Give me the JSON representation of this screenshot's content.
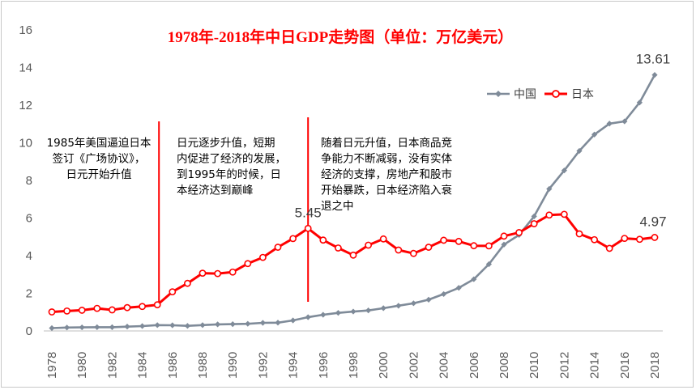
{
  "chart_data": {
    "type": "line",
    "title": "1978年-2018年中日GDP走势图（单位：万亿美元）",
    "xlabel": "",
    "ylabel": "",
    "x": [
      1978,
      1979,
      1980,
      1981,
      1982,
      1983,
      1984,
      1985,
      1986,
      1987,
      1988,
      1989,
      1990,
      1991,
      1992,
      1993,
      1994,
      1995,
      1996,
      1997,
      1998,
      1999,
      2000,
      2001,
      2002,
      2003,
      2004,
      2005,
      2006,
      2007,
      2008,
      2009,
      2010,
      2011,
      2012,
      2013,
      2014,
      2015,
      2016,
      2017,
      2018
    ],
    "x_ticks": [
      "1978",
      "1980",
      "1982",
      "1984",
      "1986",
      "1988",
      "1990",
      "1992",
      "1994",
      "1996",
      "1998",
      "2000",
      "2002",
      "2004",
      "2006",
      "2008",
      "2010",
      "2012",
      "2014",
      "2016",
      "2018"
    ],
    "y_ticks": [
      "0",
      "2",
      "4",
      "6",
      "8",
      "10",
      "12",
      "14",
      "16"
    ],
    "ylim": [
      0,
      16
    ],
    "grid": false,
    "legend_position": "top-right",
    "series": [
      {
        "name": "中国",
        "color": "#7f8b99",
        "marker": "diamond",
        "values": [
          0.15,
          0.18,
          0.19,
          0.2,
          0.2,
          0.23,
          0.26,
          0.31,
          0.3,
          0.27,
          0.31,
          0.35,
          0.36,
          0.38,
          0.43,
          0.44,
          0.56,
          0.73,
          0.86,
          0.96,
          1.03,
          1.09,
          1.21,
          1.34,
          1.47,
          1.66,
          1.96,
          2.29,
          2.75,
          3.55,
          4.59,
          5.1,
          6.09,
          7.55,
          8.53,
          9.57,
          10.44,
          11.02,
          11.14,
          12.14,
          13.61
        ]
      },
      {
        "name": "日本",
        "color": "#ff0000",
        "marker": "circle",
        "values": [
          1.01,
          1.06,
          1.1,
          1.2,
          1.12,
          1.24,
          1.3,
          1.39,
          2.08,
          2.53,
          3.07,
          3.05,
          3.13,
          3.58,
          3.91,
          4.45,
          4.91,
          5.45,
          4.83,
          4.41,
          4.03,
          4.56,
          4.89,
          4.3,
          4.12,
          4.45,
          4.82,
          4.76,
          4.53,
          4.52,
          5.04,
          5.23,
          5.7,
          6.16,
          6.2,
          5.16,
          4.85,
          4.39,
          4.92,
          4.87,
          4.97
        ]
      }
    ],
    "data_labels": [
      {
        "series": "中国",
        "year": 2018,
        "text": "13.61"
      },
      {
        "series": "日本",
        "year": 1995,
        "text": "5.45"
      },
      {
        "series": "日本",
        "year": 2018,
        "text": "4.97"
      }
    ],
    "annotations": [
      {
        "year": 1985,
        "color": "#ff0000",
        "lines": [
          "1985年美国逼迫日本",
          "签订《广场协议》，",
          "日元开始升值"
        ]
      },
      {
        "year": 1995,
        "color": "#ff0000",
        "lines": [
          "日元逐步升值，短期",
          "内促进了经济的发展，",
          "到1995年的时候，日",
          "本经济达到巅峰"
        ]
      },
      {
        "year": null,
        "color": "#ff0000",
        "lines": [
          "随着日元升值，日本商品竞",
          "争能力不断减弱，没有实体",
          "经济的支撑，房地产和股市",
          "开始暴跌，日本经济陷入衰",
          "退之中"
        ]
      }
    ]
  }
}
